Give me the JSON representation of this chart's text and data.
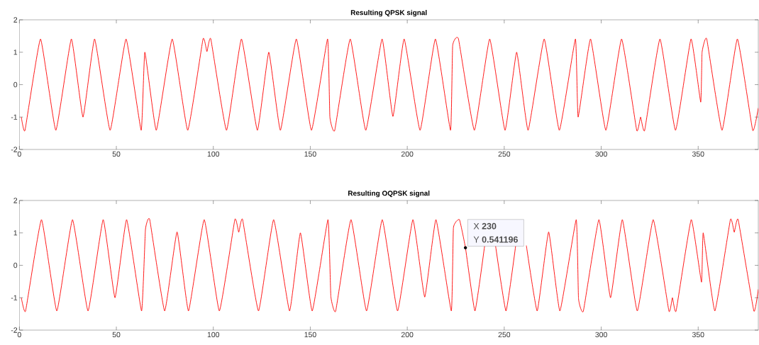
{
  "chart_data": [
    {
      "type": "line",
      "title": "Resulting QPSK signal",
      "color": "#ff0000",
      "marker": "none",
      "x": [
        1,
        2.9,
        10.9,
        18.8,
        26.8,
        32.8,
        38.8,
        46.8,
        55,
        62.8,
        64.7,
        70.6,
        78.8,
        86.8,
        94.7,
        96.7,
        98.7,
        106.8,
        114.5,
        122.7,
        128.6,
        134.6,
        142.8,
        150.6,
        158.9,
        160.1,
        162.6,
        170.6,
        178.6,
        187,
        192.6,
        198.4,
        206.6,
        214.5,
        222.3,
        223.4,
        226.4,
        234.6,
        242.5,
        250.4,
        256.4,
        262.3,
        270.6,
        278.4,
        286.7,
        288.1,
        294.5,
        302.4,
        310.5,
        318.3,
        320.3,
        322.4,
        330.3,
        338.3,
        346.3,
        351.3,
        352,
        354.4,
        362.3,
        370.2,
        378.1,
        381
      ],
      "values": [
        -1,
        -1.41,
        1.41,
        -1.41,
        1.41,
        -1,
        1.41,
        -1.41,
        1.41,
        -1.41,
        1,
        -1.41,
        1.41,
        -1.41,
        1.41,
        1.02,
        1.41,
        -1.41,
        1.41,
        -1.41,
        1,
        -1.41,
        1.41,
        -1.41,
        1.41,
        -1,
        -1.41,
        1.41,
        -1.41,
        1.41,
        -0.98,
        1.41,
        -1.41,
        1.41,
        -1.41,
        1.2,
        1.41,
        -1.41,
        1.41,
        -1.41,
        1,
        -1.41,
        1.41,
        -1.41,
        1.41,
        -1,
        1.41,
        -1.41,
        1.41,
        -1.41,
        -1,
        -1.41,
        1.41,
        -1.41,
        1.41,
        -0.54,
        1,
        1.41,
        -1.41,
        1.41,
        -1.41,
        -0.72
      ],
      "xlim": [
        0,
        381
      ],
      "ylim": [
        -2,
        2
      ],
      "xticks": [
        0,
        50,
        100,
        150,
        200,
        250,
        300,
        350
      ],
      "yticks": [
        -2,
        -1,
        0,
        1,
        2
      ]
    },
    {
      "type": "line",
      "title": "Resulting OQPSK signal",
      "color": "#ff0000",
      "marker": "none",
      "x": [
        1,
        3.2,
        11.4,
        19.3,
        27.4,
        35.4,
        43.2,
        49.3,
        55.3,
        63,
        65,
        67.2,
        74.9,
        81.3,
        87.2,
        95.3,
        103.1,
        111.1,
        113.1,
        115.1,
        123.3,
        131.1,
        139.3,
        144.9,
        151,
        159.1,
        160.6,
        163.1,
        171,
        179,
        187.1,
        195,
        202.9,
        209,
        214.8,
        222.7,
        223.8,
        226.9,
        230,
        234.9,
        239.9,
        242.7,
        245.5,
        250.9,
        255.9,
        258.8,
        261.4,
        267,
        272.9,
        278.7,
        287.1,
        288.3,
        290.8,
        298.8,
        304.8,
        310.9,
        318.6,
        326.8,
        334.9,
        336.7,
        338.6,
        346.4,
        351.7,
        352.6,
        358.6,
        366.6,
        368.6,
        370.6,
        378.7,
        381
      ],
      "values": [
        -1,
        -1.41,
        1.41,
        -1.41,
        1.41,
        -1.41,
        1.41,
        -1,
        1.41,
        -1.41,
        1.1,
        1.41,
        -1.41,
        1.03,
        -1.41,
        1.41,
        -1.41,
        1.41,
        1.02,
        1.41,
        -1.41,
        1.41,
        -1.41,
        1,
        -1.41,
        1.41,
        -0.96,
        -1.41,
        1.41,
        -1.41,
        1.41,
        -1.41,
        1.41,
        -0.98,
        1.41,
        -1.41,
        1.16,
        1.41,
        0.541196,
        -1.41,
        0.61,
        null,
        0.61,
        -1.41,
        0.61,
        null,
        0.61,
        -1.41,
        1.03,
        -1.41,
        1.41,
        -1.03,
        -1.41,
        1.41,
        -1,
        1.41,
        -1.41,
        1.41,
        -1.41,
        -1,
        -1.41,
        1.41,
        -0.52,
        1,
        -1.41,
        1.41,
        1.02,
        1.41,
        -1.41,
        -0.74
      ],
      "xlim": [
        0,
        381
      ],
      "ylim": [
        -2,
        2
      ],
      "xticks": [
        0,
        50,
        100,
        150,
        200,
        250,
        300,
        350
      ],
      "yticks": [
        -2,
        -1,
        0,
        1,
        2
      ],
      "annotations": [
        {
          "text": "X **230**",
          "x": 230,
          "y": 0.541196
        },
        {
          "text": "Y **0.541196**",
          "x": 230,
          "y": 0.541196
        }
      ]
    }
  ]
}
